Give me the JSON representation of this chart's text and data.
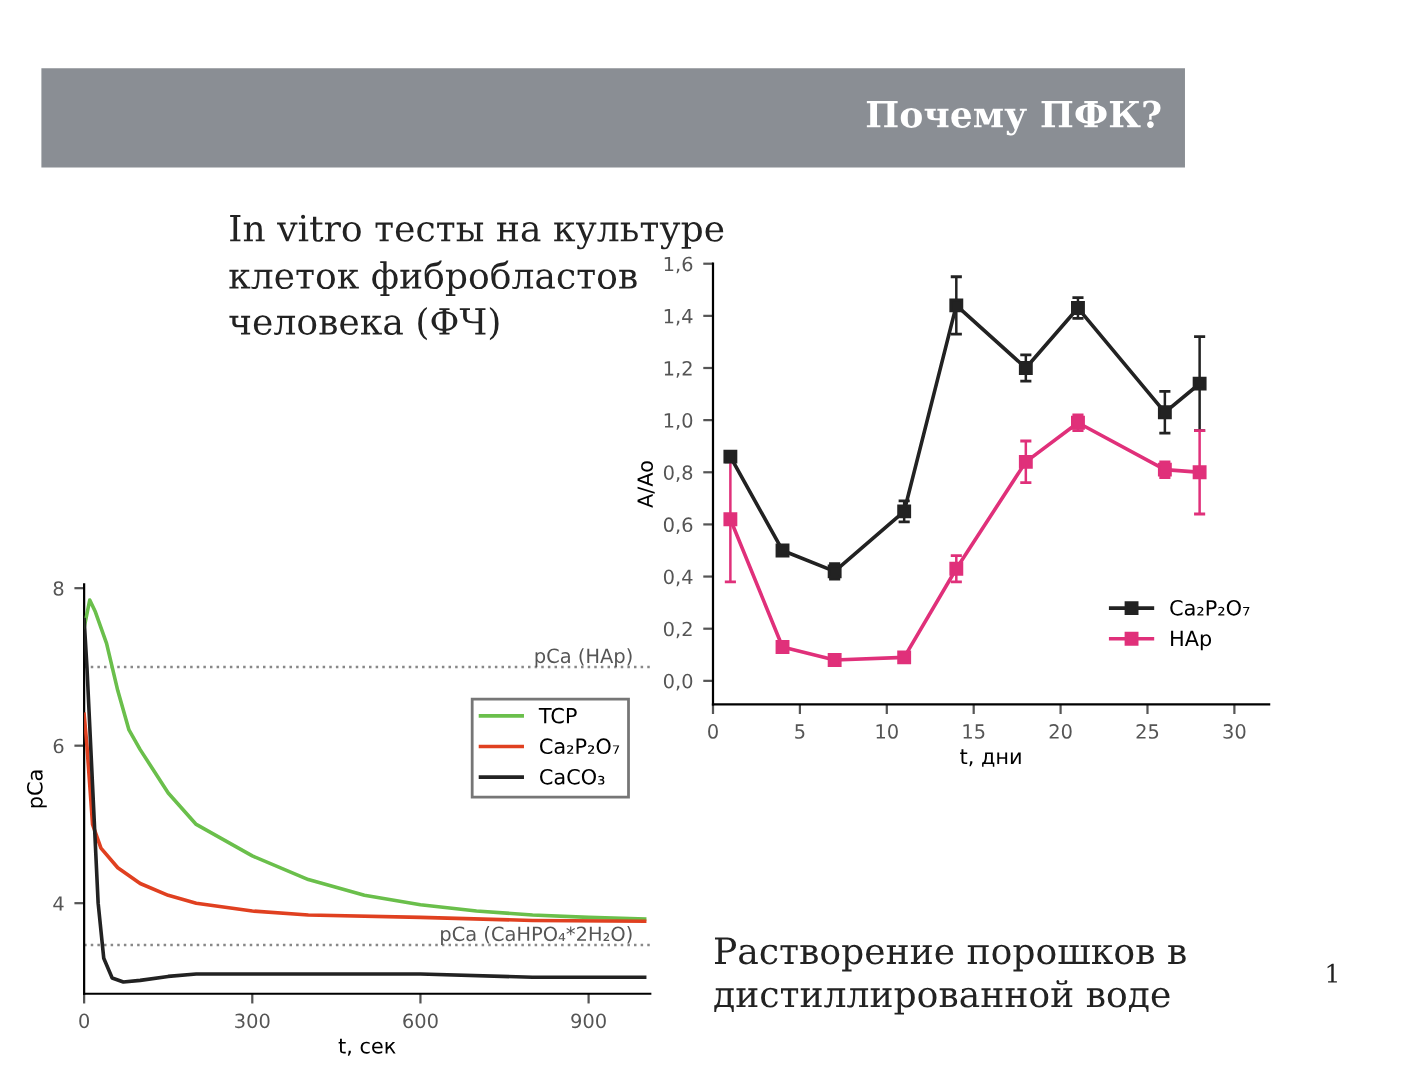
{
  "chart_data": [
    {
      "type": "line",
      "title": "Почему ПФК?",
      "subtitle": "In vitro тесты на культуре\nклеток фибробластов\nчеловека (ФЧ)",
      "xlabel": "t, дни",
      "ylabel": "A/Ao",
      "x": [
        1,
        4,
        7,
        11,
        14,
        18,
        21,
        26,
        28
      ],
      "series": [
        {
          "name": "Ca₂P₂O₇",
          "color": "#222222",
          "values": [
            0.86,
            0.5,
            0.42,
            0.65,
            1.44,
            1.2,
            1.43,
            1.03,
            1.14
          ],
          "errors": [
            0.02,
            0.02,
            0.03,
            0.04,
            0.11,
            0.05,
            0.04,
            0.08,
            0.18
          ]
        },
        {
          "name": "HAp",
          "color": "#e0307a",
          "values": [
            0.62,
            0.13,
            0.08,
            0.09,
            0.43,
            0.84,
            0.99,
            0.81,
            0.8
          ],
          "errors": [
            0.24,
            0.01,
            0.01,
            0.01,
            0.05,
            0.08,
            0.03,
            0.03,
            0.16
          ]
        }
      ],
      "xlim": [
        0,
        32
      ],
      "xticks": [
        0,
        5,
        10,
        15,
        20,
        25,
        30
      ],
      "ylim": [
        -0.09,
        1.6
      ],
      "yticks": [
        {
          "value": 0,
          "label": "0,0"
        },
        {
          "value": 0.2,
          "label": "0,2"
        },
        {
          "value": 0.4,
          "label": "0,4"
        },
        {
          "value": 0.6,
          "label": "0,6"
        },
        {
          "value": 0.8,
          "label": "0,8"
        },
        {
          "value": 1.0,
          "label": "1,0"
        },
        {
          "value": 1.2,
          "label": "1,2"
        },
        {
          "value": 1.4,
          "label": "1,4"
        },
        {
          "value": 1.6,
          "label": "1,6"
        }
      ],
      "marker": "square",
      "line_style": "solid",
      "grid": false,
      "legend": "bottom right"
    },
    {
      "type": "line",
      "xlabel": "t, сек",
      "ylabel": "pCa",
      "series": [
        {
          "name": "TCP",
          "color": "#6abf4b",
          "x": [
            0,
            10,
            20,
            40,
            60,
            80,
            100,
            150,
            200,
            300,
            400,
            500,
            600,
            700,
            800,
            900,
            1000
          ],
          "values": [
            7.5,
            7.85,
            7.7,
            7.3,
            6.7,
            6.2,
            5.95,
            5.4,
            5.0,
            4.6,
            4.3,
            4.1,
            3.98,
            3.9,
            3.85,
            3.82,
            3.8
          ]
        },
        {
          "name": "Ca₂P₂O₇",
          "color": "#e04020",
          "x": [
            0,
            5,
            15,
            30,
            60,
            100,
            150,
            200,
            300,
            400,
            600,
            800,
            1000
          ],
          "values": [
            6.4,
            6.0,
            5.0,
            4.7,
            4.45,
            4.25,
            4.1,
            4.0,
            3.9,
            3.85,
            3.82,
            3.78,
            3.77
          ]
        },
        {
          "name": "CaCO₃",
          "color": "#222222",
          "x": [
            0,
            5,
            15,
            25,
            35,
            50,
            70,
            100,
            150,
            200,
            400,
            600,
            800,
            1000
          ],
          "values": [
            7.6,
            7.0,
            5.5,
            4.0,
            3.3,
            3.05,
            3.0,
            3.02,
            3.07,
            3.1,
            3.1,
            3.1,
            3.06,
            3.06
          ]
        }
      ],
      "xlim": [
        0,
        1010
      ],
      "xticks": [
        0,
        300,
        600,
        900
      ],
      "ylim": [
        2.85,
        8.05
      ],
      "yticks": [
        4,
        6,
        8
      ],
      "ref_lines": [
        {
          "axis": "y",
          "value": 7.0,
          "label": "pCa (HAp)",
          "color": "#888888",
          "line_style": "dotted"
        },
        {
          "axis": "y",
          "value": 3.47,
          "label": "pCa (CaHPO₄*2H₂O)",
          "color": "#888888",
          "line_style": "dotted"
        }
      ],
      "annotations": [
        "Растворение порошков в\nдистиллированной воде",
        "1"
      ],
      "marker": "none",
      "line_style": "solid",
      "grid": false,
      "legend": "right"
    }
  ]
}
